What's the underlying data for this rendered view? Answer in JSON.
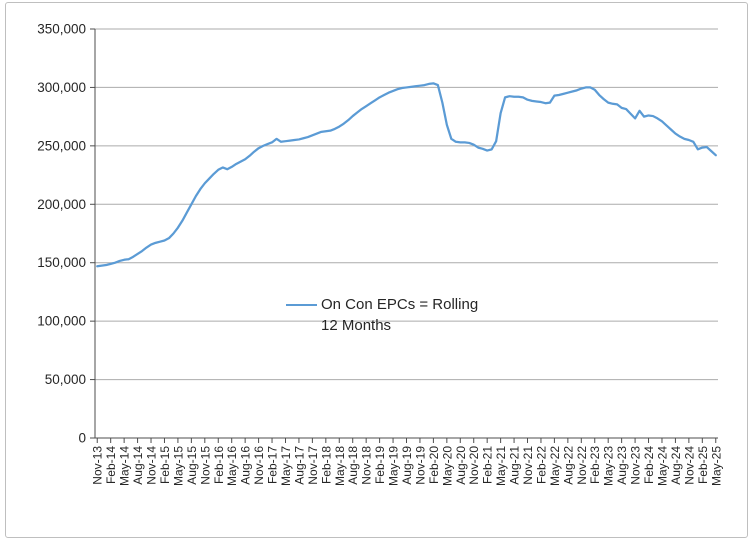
{
  "chart_data": {
    "type": "line",
    "title": "",
    "xlabel": "",
    "ylabel": "",
    "x": [
      "Nov-13",
      "Dec-13",
      "Jan-14",
      "Feb-14",
      "Mar-14",
      "Apr-14",
      "May-14",
      "Jun-14",
      "Jul-14",
      "Aug-14",
      "Sep-14",
      "Oct-14",
      "Nov-14",
      "Dec-14",
      "Jan-15",
      "Feb-15",
      "Mar-15",
      "Apr-15",
      "May-15",
      "Jun-15",
      "Jul-15",
      "Aug-15",
      "Sep-15",
      "Oct-15",
      "Nov-15",
      "Dec-15",
      "Jan-16",
      "Feb-16",
      "Mar-16",
      "Apr-16",
      "May-16",
      "Jun-16",
      "Jul-16",
      "Aug-16",
      "Sep-16",
      "Oct-16",
      "Nov-16",
      "Dec-16",
      "Jan-17",
      "Feb-17",
      "Mar-17",
      "Apr-17",
      "May-17",
      "Jun-17",
      "Jul-17",
      "Aug-17",
      "Sep-17",
      "Oct-17",
      "Nov-17",
      "Dec-17",
      "Jan-18",
      "Feb-18",
      "Mar-18",
      "Apr-18",
      "May-18",
      "Jun-18",
      "Jul-18",
      "Aug-18",
      "Sep-18",
      "Oct-18",
      "Nov-18",
      "Dec-18",
      "Jan-19",
      "Feb-19",
      "Mar-19",
      "Apr-19",
      "May-19",
      "Jun-19",
      "Jul-19",
      "Aug-19",
      "Sep-19",
      "Oct-19",
      "Nov-19",
      "Dec-19",
      "Jan-20",
      "Feb-20",
      "Mar-20",
      "Apr-20",
      "May-20",
      "Jun-20",
      "Jul-20",
      "Aug-20",
      "Sep-20",
      "Oct-20",
      "Nov-20",
      "Dec-20",
      "Jan-21",
      "Feb-21",
      "Mar-21",
      "Apr-21",
      "May-21",
      "Jun-21",
      "Jul-21",
      "Aug-21",
      "Sep-21",
      "Oct-21",
      "Nov-21",
      "Dec-21",
      "Jan-22",
      "Feb-22",
      "Mar-22",
      "Apr-22",
      "May-22",
      "Jun-22",
      "Jul-22",
      "Aug-22",
      "Sep-22",
      "Oct-22",
      "Nov-22",
      "Dec-22",
      "Jan-23",
      "Feb-23",
      "Mar-23",
      "Apr-23",
      "May-23",
      "Jun-23",
      "Jul-23",
      "Aug-23",
      "Sep-23",
      "Oct-23",
      "Nov-23",
      "Dec-23",
      "Jan-24",
      "Feb-24",
      "Mar-24",
      "Apr-24",
      "May-24",
      "Jun-24",
      "Jul-24",
      "Aug-24",
      "Sep-24",
      "Oct-24",
      "Nov-24",
      "Dec-24",
      "Jan-25",
      "Feb-25",
      "Mar-25",
      "Apr-25",
      "May-25"
    ],
    "x_tick_interval": 3,
    "series": [
      {
        "name": "On Con EPCs = Rolling 12 Months",
        "values": [
          147000,
          147500,
          148000,
          149000,
          150000,
          151500,
          152500,
          153000,
          155000,
          157500,
          160000,
          163000,
          165500,
          167000,
          168000,
          169000,
          171000,
          175000,
          180000,
          186000,
          193000,
          200000,
          207000,
          213000,
          218000,
          222000,
          226000,
          229500,
          231500,
          230000,
          232000,
          234500,
          236500,
          238500,
          241500,
          245000,
          248000,
          250000,
          251500,
          253000,
          256000,
          253500,
          254000,
          254500,
          255000,
          255500,
          256500,
          257500,
          259000,
          260500,
          262000,
          262500,
          263000,
          264500,
          266500,
          269000,
          272000,
          275500,
          278500,
          281500,
          284000,
          286500,
          289000,
          291500,
          293500,
          295500,
          297000,
          298500,
          299500,
          300000,
          300500,
          301000,
          301500,
          302000,
          303000,
          303500,
          302000,
          287000,
          268000,
          256000,
          253500,
          253000,
          253000,
          252500,
          251000,
          248500,
          247500,
          246000,
          247000,
          254000,
          278000,
          291500,
          292500,
          292000,
          292000,
          291500,
          289500,
          288500,
          288000,
          287500,
          286500,
          287000,
          293000,
          293500,
          294500,
          295500,
          296500,
          297500,
          299000,
          300000,
          300000,
          298000,
          293500,
          290000,
          287000,
          286000,
          285500,
          282500,
          281500,
          277500,
          273500,
          280000,
          275000,
          276000,
          275500,
          273500,
          271000,
          267500,
          264000,
          260500,
          258000,
          256000,
          255000,
          253500,
          247000,
          248500,
          249000,
          245500,
          242000
        ]
      }
    ],
    "ylim": [
      0,
      350000
    ],
    "y_tick_step": 50000,
    "y_tick_labels": [
      "0",
      "50,000",
      "100,000",
      "150,000",
      "200,000",
      "250,000",
      "300,000",
      "350,000"
    ],
    "grid": "horizontal",
    "legend": {
      "position": "inside-plot-center",
      "lines": [
        "On Con EPCs = Rolling",
        "12 Months"
      ]
    },
    "colors": {
      "series": "#5B9BD5",
      "gridline": "#ABABAB",
      "axis": "#4D4D4D",
      "text": "#262626",
      "frame_border": "#BFBFBF"
    }
  }
}
